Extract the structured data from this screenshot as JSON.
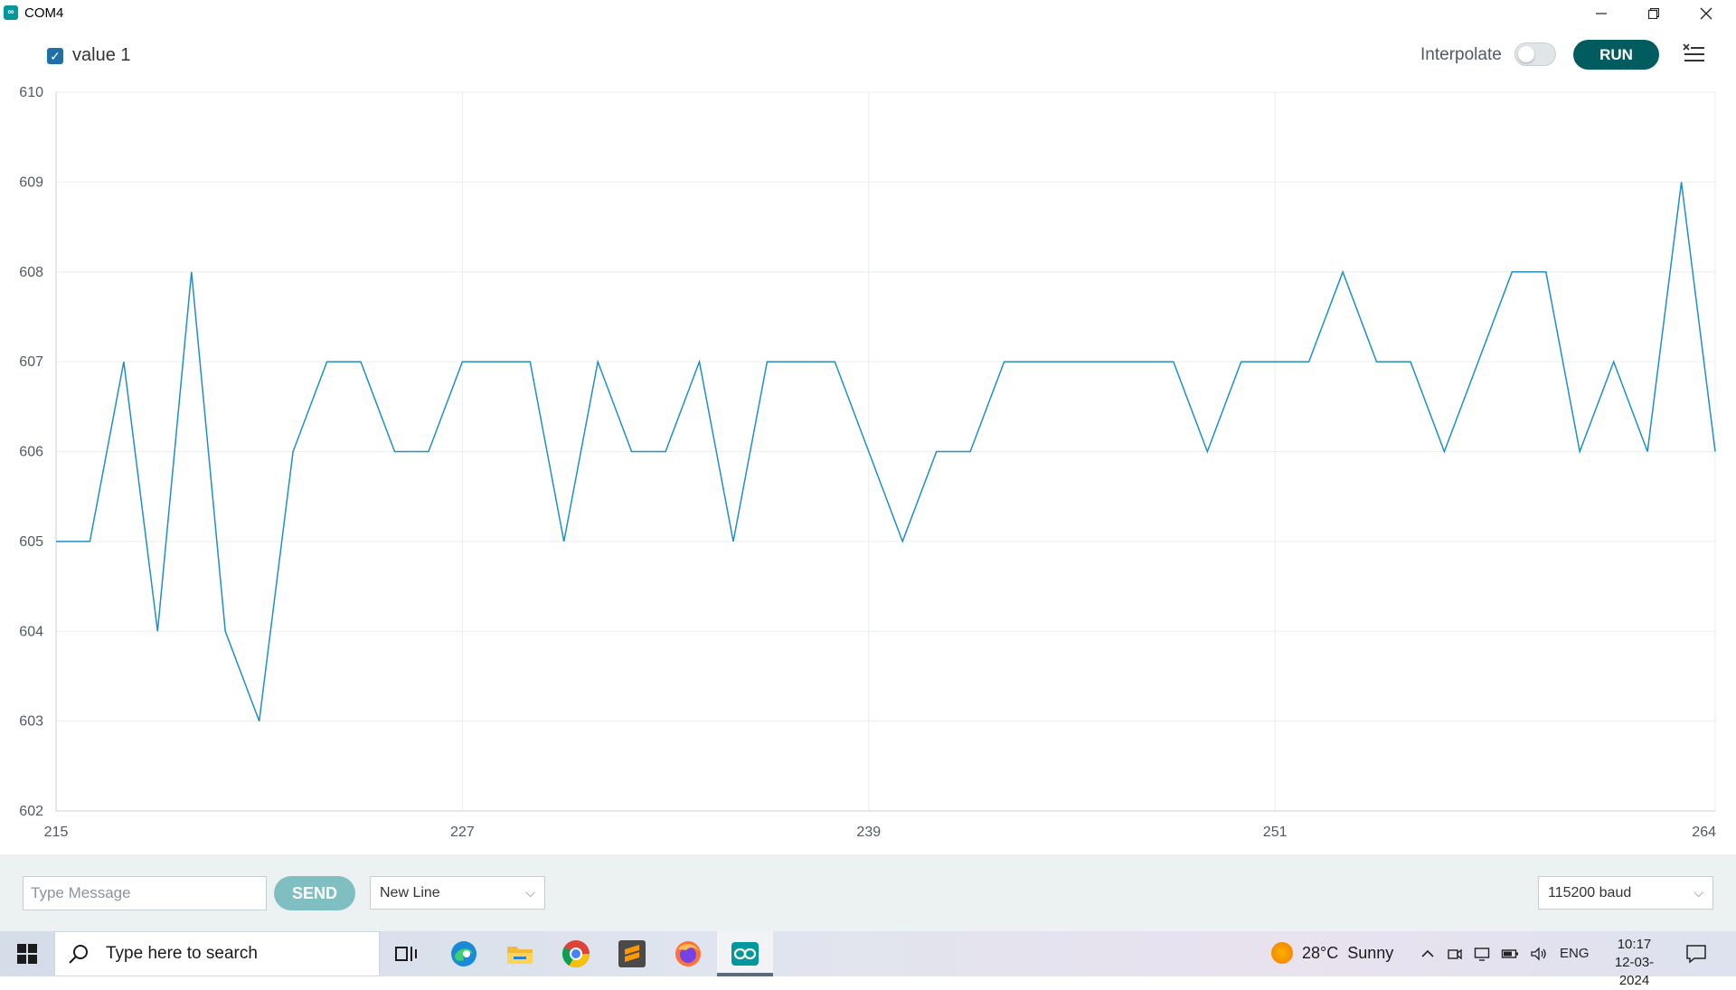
{
  "window": {
    "title": "COM4",
    "app_icon": "infinity-icon",
    "controls": [
      "minimize-icon",
      "restore-icon",
      "close-icon"
    ]
  },
  "toolbar": {
    "legend_label": "value 1",
    "legend_checked": true,
    "interpolate_label": "Interpolate",
    "interpolate_on": false,
    "run_label": "RUN",
    "clear_icon": "clear-list-icon"
  },
  "chart_data": {
    "type": "line",
    "x": [
      215,
      216,
      217,
      218,
      219,
      220,
      221,
      222,
      223,
      224,
      225,
      226,
      227,
      228,
      229,
      230,
      231,
      232,
      233,
      234,
      235,
      236,
      237,
      238,
      239,
      240,
      241,
      242,
      243,
      244,
      245,
      246,
      247,
      248,
      249,
      250,
      251,
      252,
      253,
      254,
      255,
      256,
      257,
      258,
      259,
      260,
      261,
      262,
      263,
      264
    ],
    "series": [
      {
        "values": [
          605,
          605,
          607,
          604,
          608,
          604,
          603,
          606,
          607,
          607,
          606,
          606,
          607,
          607,
          607,
          605,
          607,
          606,
          606,
          607,
          605,
          607,
          607,
          607,
          606,
          605,
          606,
          606,
          607,
          607,
          607,
          607,
          607,
          607,
          606,
          607,
          607,
          607,
          608,
          607,
          607,
          606,
          607,
          608,
          608,
          606,
          607,
          606,
          609,
          606
        ],
        "color": "#1f8fc4"
      }
    ],
    "xticks": [
      215,
      227,
      239,
      251,
      264
    ],
    "yticks": [
      602,
      603,
      604,
      605,
      606,
      607,
      608,
      609,
      610
    ],
    "xlim": [
      215,
      264
    ],
    "ylim": [
      602,
      610
    ],
    "grid": true
  },
  "message_bar": {
    "placeholder": "Type Message",
    "send_label": "SEND",
    "line_ending": "New Line",
    "baud_rate": "115200 baud"
  },
  "taskbar": {
    "search_placeholder": "Type here to search",
    "weather_temp": "28°C",
    "weather_text": "Sunny",
    "language": "ENG",
    "time": "10:17",
    "date": "12-03-2024",
    "apps": [
      "task-view-icon",
      "edge-icon",
      "file-explorer-icon",
      "chrome-icon",
      "sublime-text-icon",
      "firefox-icon",
      "arduino-icon"
    ]
  }
}
